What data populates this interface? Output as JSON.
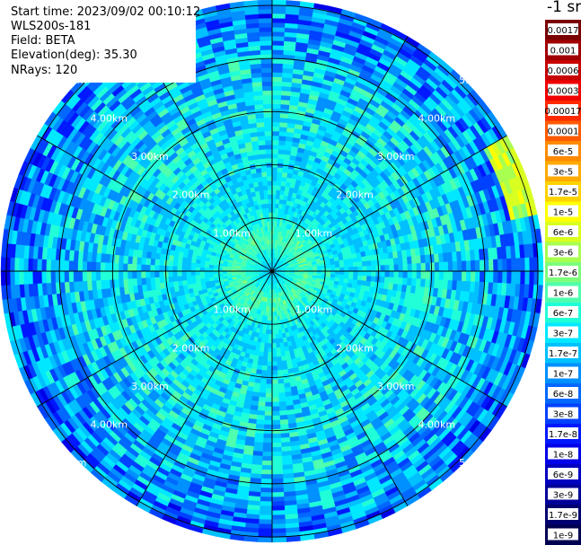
{
  "header": {
    "start_time": "Start time: 2023/09/02 00:10:12",
    "instrument": "WLS200s-181",
    "field": "Field: BETA",
    "elevation": "Elevation(deg): 35.30",
    "nrays": "NRays: 120"
  },
  "colorbar": {
    "title": "-1 sr",
    "labels": [
      "0.0017",
      "0.001",
      "0.0006",
      "0.0003",
      "0.00017",
      "0.0001",
      "6e-5",
      "3e-5",
      "1.7e-5",
      "1e-5",
      "6e-6",
      "3e-6",
      "1.7e-6",
      "1e-6",
      "6e-7",
      "3e-7",
      "1.7e-7",
      "1e-7",
      "6e-8",
      "3e-8",
      "1.7e-8",
      "1e-8",
      "6e-9",
      "3e-9",
      "1.7e-9",
      "1e-9"
    ],
    "colors": [
      "#7a0000",
      "#a00000",
      "#c80000",
      "#f00000",
      "#ff2a00",
      "#ff5a00",
      "#ff8a00",
      "#ffaa00",
      "#ffd200",
      "#ffff00",
      "#d8ff20",
      "#a8ff50",
      "#7cff7c",
      "#4effae",
      "#20ffd8",
      "#00e8ff",
      "#00c0ff",
      "#0090ff",
      "#0068ff",
      "#0040ff",
      "#0018ff",
      "#0000e8",
      "#0000c0",
      "#000098",
      "#000070",
      "#000050"
    ]
  },
  "chart_data": {
    "type": "heatmap",
    "projection": "polar-ppi",
    "field": "BETA",
    "units": "-1 sr",
    "nrays": 120,
    "range_rings_km": [
      1,
      2,
      3,
      4,
      5
    ],
    "ring_labels": [
      "1.00km",
      "2.00km",
      "3.00km",
      "4.00km",
      "5.00km"
    ],
    "max_range_km": 5.1,
    "spokes_deg_step": 30,
    "radial_profile": [
      {
        "range_km": 0.0,
        "value": "1.7e-7"
      },
      {
        "range_km": 0.6,
        "value": "1e-6"
      },
      {
        "range_km": 1.2,
        "value": "3e-7"
      },
      {
        "range_km": 3.0,
        "value": "3e-7"
      },
      {
        "range_km": 4.0,
        "value": "1.7e-7"
      },
      {
        "range_km": 5.0,
        "value": "6e-8"
      }
    ],
    "hotspot": {
      "azimuth_deg_from_north": 70,
      "range_km_min": 4.6,
      "range_km_max": 5.1,
      "value": "1e-5"
    },
    "colorbar_ticks": [
      "0.0017",
      "0.001",
      "0.0006",
      "0.0003",
      "0.00017",
      "0.0001",
      "6e-5",
      "3e-5",
      "1.7e-5",
      "1e-5",
      "6e-6",
      "3e-6",
      "1.7e-6",
      "1e-6",
      "6e-7",
      "3e-7",
      "1.7e-7",
      "1e-7",
      "6e-8",
      "3e-8",
      "1.7e-8",
      "1e-8",
      "6e-9",
      "3e-9",
      "1.7e-9",
      "1e-9"
    ]
  }
}
